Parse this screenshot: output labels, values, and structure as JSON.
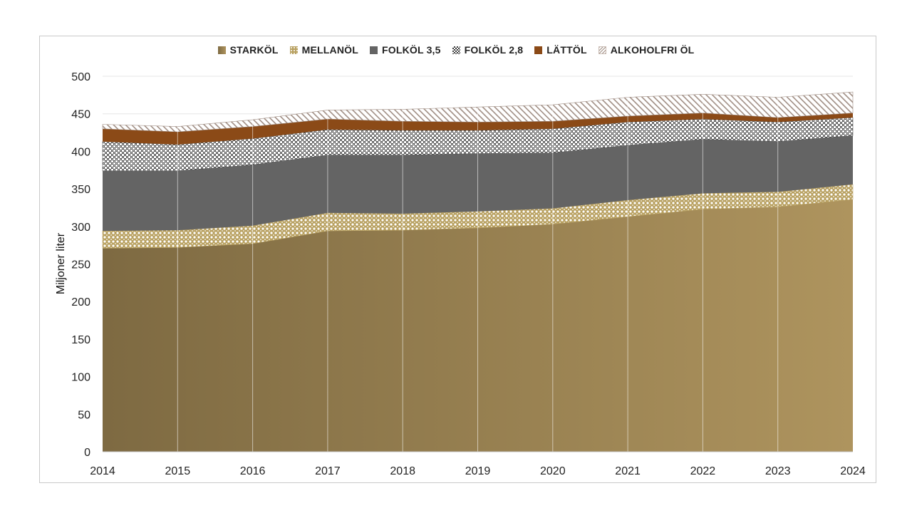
{
  "chart_data": {
    "type": "area",
    "stacked": true,
    "x": [
      "2014",
      "2015",
      "2016",
      "2017",
      "2018",
      "2019",
      "2020",
      "2021",
      "2022",
      "2023",
      "2024"
    ],
    "ylabel": "Miljoner liter",
    "xlabel": "",
    "ylim": [
      0,
      500
    ],
    "yticks": [
      0,
      50,
      100,
      150,
      200,
      250,
      300,
      350,
      400,
      450,
      500
    ],
    "grid": "horizontal",
    "legend_position": "top",
    "series": [
      {
        "name": "STARKÖL",
        "color": "#8a7449",
        "pattern": "solid-gradient",
        "values": [
          271,
          272,
          277,
          294,
          295,
          298,
          303,
          313,
          323,
          326,
          336
        ]
      },
      {
        "name": "MELLANÖL",
        "color": "#b8a060",
        "pattern": "crosshatch",
        "values": [
          23,
          23,
          24,
          24,
          22,
          22,
          21,
          22,
          21,
          20,
          20
        ]
      },
      {
        "name": "FOLKÖL 3,5",
        "color": "#626262",
        "pattern": "solid",
        "values": [
          80,
          79,
          81,
          77,
          78,
          77,
          74,
          73,
          72,
          67,
          65
        ]
      },
      {
        "name": "FOLKÖL 2,8",
        "color": "#444444",
        "pattern": "checker",
        "values": [
          39,
          35,
          35,
          34,
          33,
          31,
          32,
          31,
          27,
          26,
          24
        ]
      },
      {
        "name": "LÄTTÖL",
        "color": "#8b4513",
        "pattern": "solid",
        "values": [
          17,
          17,
          16,
          14,
          12,
          11,
          10,
          8,
          8,
          6,
          6
        ]
      },
      {
        "name": "ALKOHOLFRI ÖL",
        "color": "#b9a9a0",
        "pattern": "diagonal",
        "values": [
          6,
          7,
          9,
          12,
          16,
          20,
          22,
          25,
          25,
          27,
          28
        ]
      }
    ]
  }
}
